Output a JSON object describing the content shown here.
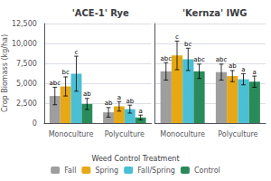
{
  "chart_data": [
    {
      "type": "bar",
      "title": "'ACE-1' Rye",
      "ylabel": "Crop Biomass (kg/ha)",
      "categories": [
        "Monoculture",
        "Polyculture"
      ],
      "series": [
        {
          "name": "Fall",
          "color": "#9E9E9E",
          "values": [
            3400,
            1350
          ],
          "errors": [
            1100,
            600
          ],
          "letters": [
            "abc",
            "ab"
          ]
        },
        {
          "name": "Spring",
          "color": "#E6A817",
          "values": [
            4600,
            2100
          ],
          "errors": [
            1200,
            600
          ],
          "letters": [
            "bc",
            "a"
          ]
        },
        {
          "name": "Fall/Spring",
          "color": "#4BBFD4",
          "values": [
            6200,
            1750
          ],
          "errors": [
            2200,
            500
          ],
          "letters": [
            "c",
            "ab"
          ]
        },
        {
          "name": "Control",
          "color": "#2A8B5A",
          "values": [
            2400,
            700
          ],
          "errors": [
            700,
            300
          ],
          "letters": [
            "ab",
            "a"
          ]
        }
      ],
      "ylim": [
        0,
        12500
      ],
      "yticks": [
        0,
        2500,
        5000,
        7500,
        10000,
        12500
      ],
      "grid": true,
      "legend": "bottom",
      "legend_title": "Weed Control Treatment"
    },
    {
      "type": "bar",
      "title": "'Kernza' IWG",
      "categories": [
        "Monoculture",
        "Polyculture"
      ],
      "series": [
        {
          "name": "Fall",
          "color": "#9E9E9E",
          "values": [
            6500,
            6400
          ],
          "errors": [
            1100,
            1000
          ],
          "letters": [
            "abc",
            "abc"
          ]
        },
        {
          "name": "Spring",
          "color": "#E6A817",
          "values": [
            8500,
            5900
          ],
          "errors": [
            1800,
            700
          ],
          "letters": [
            "c",
            "ab"
          ]
        },
        {
          "name": "Fall/Spring",
          "color": "#4BBFD4",
          "values": [
            8000,
            5500
          ],
          "errors": [
            1400,
            700
          ],
          "letters": [
            "bc",
            "a"
          ]
        },
        {
          "name": "Control",
          "color": "#2A8B5A",
          "values": [
            6500,
            5200
          ],
          "errors": [
            900,
            700
          ],
          "letters": [
            "abc",
            "a"
          ]
        }
      ],
      "ylim": [
        0,
        12500
      ],
      "yticks": [
        0,
        2500,
        5000,
        7500,
        10000,
        12500
      ],
      "grid": true,
      "tick_labels": "x"
    }
  ]
}
